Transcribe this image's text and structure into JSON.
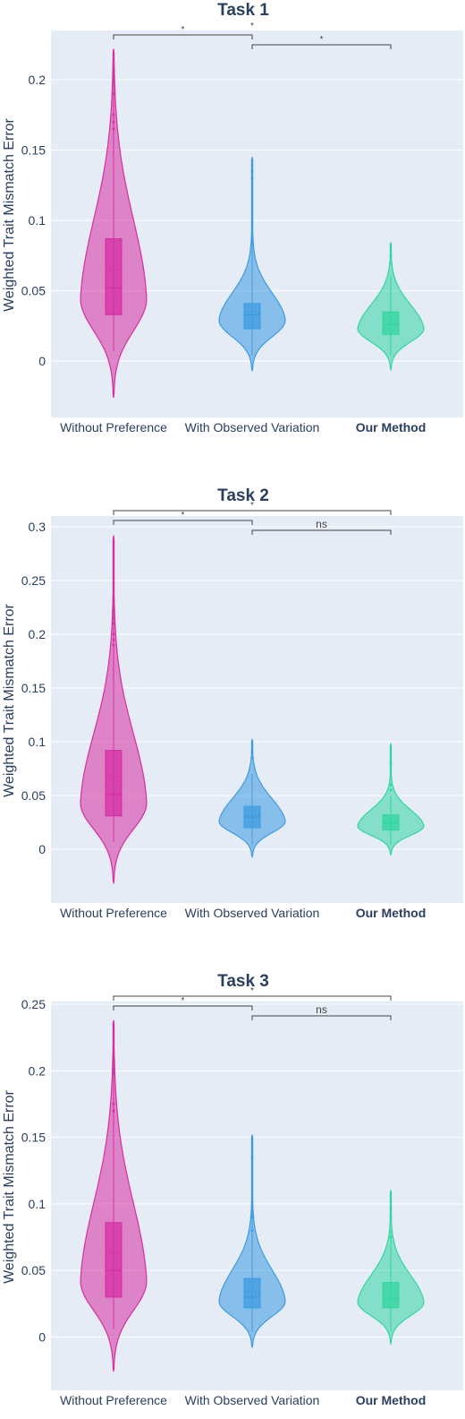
{
  "colors": {
    "plot_background": "#e5ecf6",
    "gridline": "#ffffff",
    "text": "#2a3f5f",
    "bracket": "#444444",
    "series": [
      "#d62fa1",
      "#3d9be0",
      "#33d6a0"
    ]
  },
  "categories": [
    "Without Preference",
    "With Observed Variation",
    "Our Method"
  ],
  "ylabel": "Weighted Trait Mismatch Error",
  "chart_data": [
    {
      "type": "violin",
      "title": "Task 1",
      "ylabel": "Weighted Trait Mismatch Error",
      "categories": [
        "Without Preference",
        "With Observed Variation",
        "Our Method"
      ],
      "ylim": [
        -0.04,
        0.235
      ],
      "yticks": [
        0,
        0.05,
        0.1,
        0.15,
        0.2
      ],
      "ytick_labels": [
        "0",
        "0.05",
        "0.1",
        "0.15",
        "0.2"
      ],
      "grid": true,
      "series": [
        {
          "violin_min": -0.026,
          "violin_max": 0.222,
          "whisker_low": 0.007,
          "q1": 0.033,
          "median": 0.052,
          "mean": 0.065,
          "q3": 0.087,
          "whisker_high": 0.21,
          "outliers": [
            0.19,
            0.175,
            0.17,
            0.165
          ]
        },
        {
          "violin_min": -0.007,
          "violin_max": 0.145,
          "whisker_low": 0.004,
          "q1": 0.023,
          "median": 0.033,
          "mean": 0.035,
          "q3": 0.041,
          "whisker_high": 0.11,
          "outliers": [
            0.13,
            0.135
          ]
        },
        {
          "violin_min": -0.006,
          "violin_max": 0.084,
          "whisker_low": 0.004,
          "q1": 0.019,
          "median": 0.026,
          "mean": 0.028,
          "q3": 0.035,
          "whisker_high": 0.06,
          "outliers": [
            0.07,
            0.075
          ]
        }
      ],
      "annotations": [
        {
          "from": 0,
          "to": 1,
          "label": "*",
          "level": 1
        },
        {
          "from": 1,
          "to": 2,
          "label": "*",
          "level": 0
        }
      ],
      "top_marks": [
        "*"
      ]
    },
    {
      "type": "violin",
      "title": "Task 2",
      "ylabel": "Weighted Trait Mismatch Error",
      "categories": [
        "Without Preference",
        "With Observed Variation",
        "Our Method"
      ],
      "ylim": [
        -0.05,
        0.31
      ],
      "yticks": [
        0,
        0.05,
        0.1,
        0.15,
        0.2,
        0.25,
        0.3
      ],
      "ytick_labels": [
        "0",
        "0.05",
        "0.1",
        "0.15",
        "0.2",
        "0.25",
        "0.3"
      ],
      "grid": true,
      "series": [
        {
          "violin_min": -0.032,
          "violin_max": 0.292,
          "whisker_low": 0.007,
          "q1": 0.031,
          "median": 0.051,
          "mean": 0.068,
          "q3": 0.092,
          "whisker_high": 0.28,
          "outliers": [
            0.215,
            0.21,
            0.2,
            0.195,
            0.19
          ]
        },
        {
          "violin_min": -0.007,
          "violin_max": 0.102,
          "whisker_low": 0.004,
          "q1": 0.02,
          "median": 0.03,
          "mean": 0.032,
          "q3": 0.04,
          "whisker_high": 0.07,
          "outliers": [
            0.085,
            0.09
          ]
        },
        {
          "violin_min": -0.005,
          "violin_max": 0.098,
          "whisker_low": 0.004,
          "q1": 0.018,
          "median": 0.024,
          "mean": 0.026,
          "q3": 0.032,
          "whisker_high": 0.05,
          "outliers": [
            0.055,
            0.06,
            0.08
          ]
        }
      ],
      "annotations": [
        {
          "from": 0,
          "to": 2,
          "label": "*",
          "level": 2
        },
        {
          "from": 0,
          "to": 1,
          "label": "*",
          "level": 1
        },
        {
          "from": 1,
          "to": 2,
          "label": "ns",
          "level": 0
        }
      ],
      "top_marks": []
    },
    {
      "type": "violin",
      "title": "Task 3",
      "ylabel": "Weighted Trait Mismatch Error",
      "categories": [
        "Without Preference",
        "With Observed Variation",
        "Our Method"
      ],
      "ylim": [
        -0.04,
        0.252
      ],
      "yticks": [
        0,
        0.05,
        0.1,
        0.15,
        0.2,
        0.25
      ],
      "ytick_labels": [
        "0",
        "0.05",
        "0.1",
        "0.15",
        "0.2",
        "0.25"
      ],
      "grid": true,
      "series": [
        {
          "violin_min": -0.026,
          "violin_max": 0.238,
          "whisker_low": 0.006,
          "q1": 0.03,
          "median": 0.05,
          "mean": 0.063,
          "q3": 0.086,
          "whisker_high": 0.225,
          "outliers": [
            0.2,
            0.198,
            0.175,
            0.17
          ]
        },
        {
          "violin_min": -0.008,
          "violin_max": 0.152,
          "whisker_low": 0.004,
          "q1": 0.022,
          "median": 0.03,
          "mean": 0.034,
          "q3": 0.044,
          "whisker_high": 0.11,
          "outliers": [
            0.135,
            0.09,
            0.08
          ]
        },
        {
          "violin_min": -0.005,
          "violin_max": 0.11,
          "whisker_low": 0.004,
          "q1": 0.022,
          "median": 0.029,
          "mean": 0.031,
          "q3": 0.041,
          "whisker_high": 0.08,
          "outliers": [
            0.075,
            0.09
          ]
        }
      ],
      "annotations": [
        {
          "from": 0,
          "to": 2,
          "label": "*",
          "level": 2
        },
        {
          "from": 0,
          "to": 1,
          "label": "*",
          "level": 1
        },
        {
          "from": 1,
          "to": 2,
          "label": "ns",
          "level": 0
        }
      ],
      "top_marks": []
    }
  ]
}
